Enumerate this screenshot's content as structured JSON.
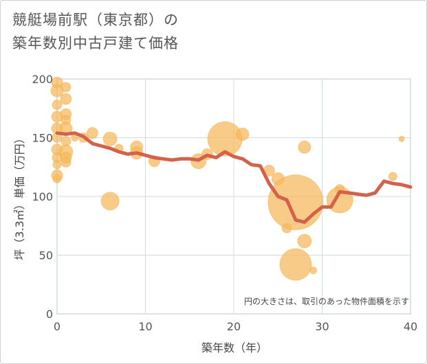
{
  "title_line1": "競艇場前駅（東京都）の",
  "title_line2": "築年数別中古戸建て価格",
  "chart_data": {
    "type": "scatter+line",
    "xlabel": "築年数（年）",
    "ylabel": "坪（3.3㎡）単価（万円）",
    "xlim": [
      0,
      40
    ],
    "ylim": [
      0,
      200
    ],
    "xticks": [
      0,
      10,
      20,
      30,
      40
    ],
    "yticks": [
      0,
      50,
      100,
      150,
      200
    ],
    "grid": true,
    "annotation": "円の大きさは、取引のあった物件面積を示す",
    "colors": {
      "bubble": "#f5b95a",
      "line": "#d4614a",
      "grid": "#d0dbe6"
    },
    "bubbles": [
      {
        "x": 0,
        "y": 197,
        "s": 8
      },
      {
        "x": 0,
        "y": 190,
        "s": 9
      },
      {
        "x": 0,
        "y": 178,
        "s": 7
      },
      {
        "x": 0,
        "y": 168,
        "s": 8
      },
      {
        "x": 0,
        "y": 158,
        "s": 8
      },
      {
        "x": 0,
        "y": 150,
        "s": 7
      },
      {
        "x": 0,
        "y": 140,
        "s": 8
      },
      {
        "x": 0,
        "y": 133,
        "s": 7
      },
      {
        "x": 0,
        "y": 127,
        "s": 6
      },
      {
        "x": 0,
        "y": 118,
        "s": 8
      },
      {
        "x": 0,
        "y": 115,
        "s": 6
      },
      {
        "x": 1,
        "y": 193,
        "s": 7
      },
      {
        "x": 1,
        "y": 183,
        "s": 8
      },
      {
        "x": 1,
        "y": 170,
        "s": 8
      },
      {
        "x": 1,
        "y": 165,
        "s": 7
      },
      {
        "x": 1,
        "y": 158,
        "s": 9
      },
      {
        "x": 1,
        "y": 147,
        "s": 7
      },
      {
        "x": 1,
        "y": 138,
        "s": 10
      },
      {
        "x": 1,
        "y": 133,
        "s": 8
      },
      {
        "x": 1,
        "y": 129,
        "s": 7
      },
      {
        "x": 2,
        "y": 150,
        "s": 5
      },
      {
        "x": 3,
        "y": 150,
        "s": 7
      },
      {
        "x": 4,
        "y": 154,
        "s": 8
      },
      {
        "x": 6,
        "y": 149,
        "s": 10
      },
      {
        "x": 6,
        "y": 96,
        "s": 13
      },
      {
        "x": 7,
        "y": 141,
        "s": 6
      },
      {
        "x": 9,
        "y": 142,
        "s": 9
      },
      {
        "x": 9,
        "y": 137,
        "s": 9
      },
      {
        "x": 11,
        "y": 130,
        "s": 8
      },
      {
        "x": 16,
        "y": 130,
        "s": 11
      },
      {
        "x": 17,
        "y": 136,
        "s": 8
      },
      {
        "x": 19,
        "y": 149,
        "s": 25
      },
      {
        "x": 21,
        "y": 153,
        "s": 9
      },
      {
        "x": 24,
        "y": 122,
        "s": 8
      },
      {
        "x": 25,
        "y": 115,
        "s": 9
      },
      {
        "x": 26,
        "y": 73,
        "s": 7
      },
      {
        "x": 27,
        "y": 95,
        "s": 40
      },
      {
        "x": 27,
        "y": 42,
        "s": 23
      },
      {
        "x": 28,
        "y": 142,
        "s": 9
      },
      {
        "x": 28,
        "y": 62,
        "s": 10
      },
      {
        "x": 29,
        "y": 37,
        "s": 5
      },
      {
        "x": 32,
        "y": 106,
        "s": 7
      },
      {
        "x": 32,
        "y": 97,
        "s": 19
      },
      {
        "x": 38,
        "y": 117,
        "s": 6
      },
      {
        "x": 39,
        "y": 149,
        "s": 4
      }
    ],
    "line": {
      "x": [
        0,
        1,
        2,
        3,
        4,
        5,
        6,
        7,
        8,
        9,
        10,
        11,
        12,
        13,
        14,
        15,
        16,
        17,
        18,
        19,
        20,
        21,
        22,
        23,
        24,
        25,
        26,
        27,
        28,
        29,
        30,
        31,
        32,
        33,
        34,
        35,
        36,
        37,
        38,
        39,
        40
      ],
      "y": [
        154,
        153,
        154,
        151,
        145,
        143,
        141,
        138,
        136,
        137,
        135,
        133,
        132,
        131,
        132,
        132,
        131,
        135,
        133,
        138,
        134,
        132,
        127,
        126,
        111,
        100,
        97,
        80,
        78,
        85,
        91,
        91,
        104,
        103,
        102,
        101,
        103,
        113,
        111,
        110,
        108
      ]
    }
  }
}
